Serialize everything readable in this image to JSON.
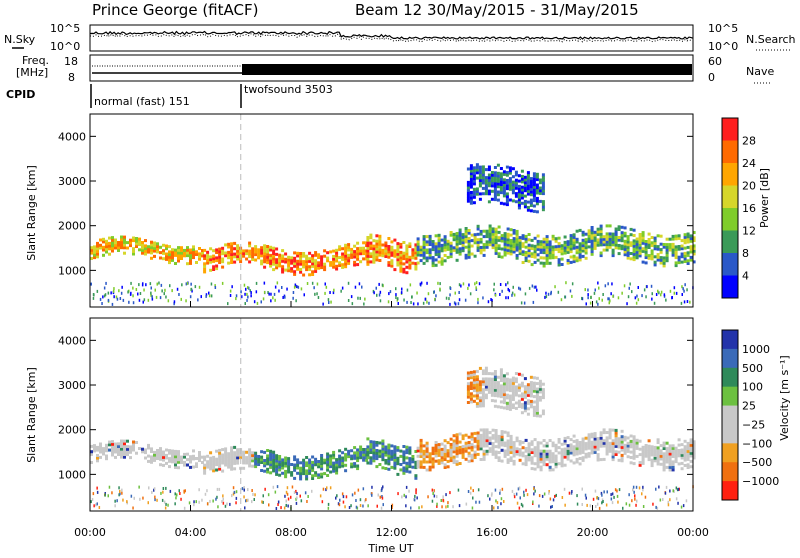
{
  "chart_data": {
    "type": "heatmap",
    "title": "Prince George (fitACF)",
    "subtitle": "Beam 12  30/May/2015 - 31/May/2015",
    "header": {
      "nsky_label": "N.Sky",
      "nsearch_label": "N.Search",
      "noise_ticks": [
        "10^5",
        "10^0"
      ],
      "freq_label_1": "Freq.",
      "freq_label_2": "[MHz]",
      "freq_ticks": [
        "18",
        "8"
      ],
      "nave_label": "Nave",
      "nave_ticks": [
        "60",
        "0"
      ],
      "cpid_label": "CPID",
      "modes": [
        {
          "name": "normal (fast) 151",
          "start_hour": 0,
          "end_hour": 6
        },
        {
          "name": "twofsound 3503",
          "start_hour": 6,
          "end_hour": 24
        }
      ]
    },
    "x": {
      "label": "Time UT",
      "range_hours": [
        0,
        24
      ],
      "ticks": [
        "00:00",
        "04:00",
        "08:00",
        "12:00",
        "16:00",
        "20:00",
        "00:00"
      ]
    },
    "panels": [
      {
        "name": "power",
        "ylabel": "Slant Range [km]",
        "ylim": [
          180,
          4500
        ],
        "yticks": [
          "4000",
          "3000",
          "2000",
          "1000"
        ],
        "colorbar_label": "Power [dB]",
        "colorbar_ticks": [
          "28",
          "24",
          "20",
          "16",
          "12",
          "8",
          "4"
        ],
        "colorbar_colors": [
          "#ff1f1f",
          "#ff6a00",
          "#ffa600",
          "#d6d62a",
          "#7fcc2a",
          "#3a9a58",
          "#2a58c8",
          "#0000ff"
        ]
      },
      {
        "name": "velocity",
        "ylabel": "Slant Range [km]",
        "ylim": [
          180,
          4500
        ],
        "yticks": [
          "4000",
          "3000",
          "2000",
          "1000"
        ],
        "colorbar_label": "Velocity [m s⁻¹]",
        "colorbar_ticks": [
          "1000",
          "500",
          "100",
          "25",
          "−25",
          "−100",
          "−500",
          "−1000"
        ],
        "colorbar_colors": [
          "#2233aa",
          "#3a6ab8",
          "#2f8a5a",
          "#6cc040",
          "#c8c8c8",
          "#c8c8c8",
          "#f0a020",
          "#f07010",
          "#ff2010"
        ]
      }
    ],
    "bands": [
      {
        "start": 0.0,
        "end": 4.5,
        "center_km": 1500,
        "width_km": 400,
        "level": "high"
      },
      {
        "start": 4.5,
        "end": 11.0,
        "center_km": 1300,
        "width_km": 500,
        "level": "very-high"
      },
      {
        "start": 11.0,
        "end": 13.0,
        "center_km": 1400,
        "width_km": 700,
        "level": "very-high"
      },
      {
        "start": 13.0,
        "end": 24.0,
        "center_km": 1600,
        "width_km": 700,
        "level": "medium"
      },
      {
        "start": 15.0,
        "end": 18.0,
        "center_km": 2900,
        "width_km": 900,
        "level": "low"
      }
    ]
  }
}
